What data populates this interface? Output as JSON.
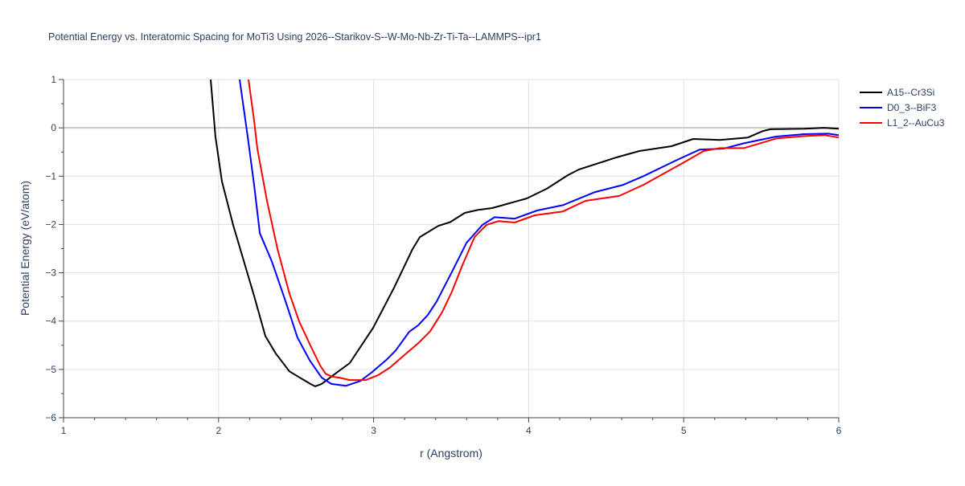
{
  "chart_data": {
    "type": "line",
    "title": "Potential Energy vs. Interatomic Spacing for MoTi3 Using 2026--Starikov-S--W-Mo-Nb-Zr-Ti-Ta--LAMMPS--ipr1",
    "xlabel": "r (Angstrom)",
    "ylabel": "Potential Energy (eV/atom)",
    "xlim": [
      1,
      6
    ],
    "ylim": [
      -6,
      1
    ],
    "xticks": [
      "1",
      "2",
      "3",
      "4",
      "5",
      "6"
    ],
    "yticks": [
      "1",
      "0",
      "−1",
      "−2",
      "−3",
      "−4",
      "−5",
      "−6"
    ],
    "grid": true,
    "legend_position": "top-right",
    "series": [
      {
        "name": "A15--Cr3Si",
        "color": "#000000",
        "x": [
          1.949,
          1.98,
          2.022,
          2.094,
          2.229,
          2.302,
          2.369,
          2.457,
          2.592,
          2.623,
          2.665,
          2.768,
          2.846,
          2.997,
          3.132,
          3.251,
          3.298,
          3.417,
          3.495,
          3.588,
          3.671,
          3.765,
          3.988,
          4.117,
          4.252,
          4.325,
          4.558,
          4.714,
          4.921,
          5.061,
          5.232,
          5.414,
          5.507,
          5.559,
          5.777,
          5.907,
          6.0
        ],
        "y": [
          1,
          -0.18,
          -1.11,
          -2.01,
          -3.48,
          -4.31,
          -4.67,
          -5.04,
          -5.3,
          -5.35,
          -5.3,
          -5.05,
          -4.87,
          -4.14,
          -3.31,
          -2.51,
          -2.26,
          -2.03,
          -1.95,
          -1.76,
          -1.7,
          -1.66,
          -1.46,
          -1.26,
          -0.98,
          -0.86,
          -0.62,
          -0.48,
          -0.38,
          -0.23,
          -0.25,
          -0.2,
          -0.07,
          -0.03,
          -0.02,
          0.0,
          -0.02
        ]
      },
      {
        "name": "D0_3--BiF3",
        "color": "#0000ff",
        "x": [
          2.136,
          2.188,
          2.229,
          2.266,
          2.343,
          2.432,
          2.509,
          2.587,
          2.665,
          2.727,
          2.821,
          2.914,
          2.992,
          3.08,
          3.142,
          3.23,
          3.287,
          3.35,
          3.407,
          3.505,
          3.599,
          3.702,
          3.78,
          3.91,
          4.055,
          4.221,
          4.428,
          4.61,
          4.74,
          4.947,
          5.103,
          5.258,
          5.388,
          5.596,
          5.777,
          5.933,
          6.0
        ],
        "y": [
          1,
          -0.18,
          -1.18,
          -2.18,
          -2.76,
          -3.59,
          -4.34,
          -4.81,
          -5.17,
          -5.3,
          -5.34,
          -5.24,
          -5.05,
          -4.81,
          -4.61,
          -4.22,
          -4.09,
          -3.87,
          -3.59,
          -2.98,
          -2.38,
          -2.01,
          -1.85,
          -1.88,
          -1.71,
          -1.6,
          -1.33,
          -1.18,
          -1.0,
          -0.68,
          -0.45,
          -0.43,
          -0.32,
          -0.18,
          -0.13,
          -0.12,
          -0.15
        ]
      },
      {
        "name": "L1_2--AuCu3",
        "color": "#ff0000",
        "x": [
          2.193,
          2.229,
          2.25,
          2.312,
          2.38,
          2.457,
          2.52,
          2.587,
          2.655,
          2.691,
          2.732,
          2.779,
          2.846,
          2.95,
          3.028,
          3.106,
          3.21,
          3.287,
          3.365,
          3.443,
          3.505,
          3.573,
          3.651,
          3.728,
          3.806,
          3.91,
          4.039,
          4.221,
          4.366,
          4.584,
          4.74,
          4.999,
          5.129,
          5.232,
          5.388,
          5.596,
          5.777,
          5.907,
          6.0
        ],
        "y": [
          1,
          0.15,
          -0.43,
          -1.51,
          -2.51,
          -3.43,
          -4.01,
          -4.47,
          -4.92,
          -5.09,
          -5.15,
          -5.17,
          -5.22,
          -5.22,
          -5.12,
          -4.96,
          -4.67,
          -4.46,
          -4.21,
          -3.81,
          -3.39,
          -2.84,
          -2.26,
          -2.01,
          -1.93,
          -1.96,
          -1.81,
          -1.73,
          -1.51,
          -1.41,
          -1.18,
          -0.72,
          -0.48,
          -0.42,
          -0.42,
          -0.22,
          -0.17,
          -0.15,
          -0.2
        ]
      }
    ]
  }
}
